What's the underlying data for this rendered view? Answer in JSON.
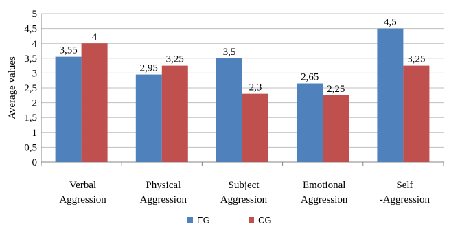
{
  "chart_data": {
    "type": "bar",
    "ylabel": "Average values",
    "xlabel": "",
    "ylim": [
      0,
      5
    ],
    "yticks": [
      "0",
      "0,5",
      "1",
      "1,5",
      "2",
      "2,5",
      "3",
      "3,5",
      "4",
      "4,5",
      "5"
    ],
    "grid": true,
    "legend_position": "bottom",
    "categories": [
      [
        "Verbal",
        "Aggression"
      ],
      [
        "Physical",
        "Aggression"
      ],
      [
        "Subject",
        "Aggression"
      ],
      [
        "Emotional",
        "Aggression"
      ],
      [
        "Self",
        "-Aggression"
      ]
    ],
    "series": [
      {
        "name": "EG",
        "color": "#4f81bd",
        "values": [
          3.55,
          2.95,
          3.5,
          2.65,
          4.5
        ],
        "labels": [
          "3,55",
          "2,95",
          "3,5",
          "2,65",
          "4,5"
        ]
      },
      {
        "name": "CG",
        "color": "#c0504d",
        "values": [
          4,
          3.25,
          2.3,
          2.25,
          3.25
        ],
        "labels": [
          "4",
          "3,25",
          "2,3",
          "2,25",
          "3,25"
        ]
      }
    ]
  }
}
